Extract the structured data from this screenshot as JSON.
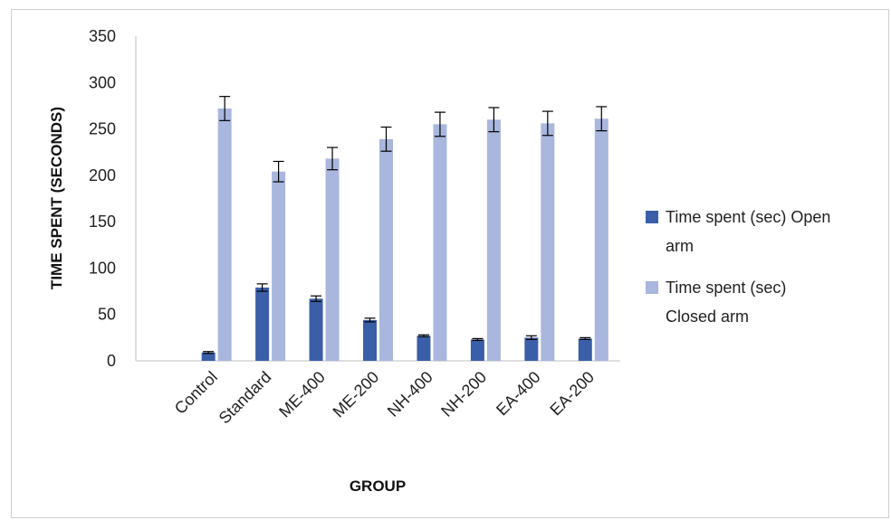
{
  "chart_data": {
    "type": "bar",
    "title": "",
    "xlabel": "GROUP",
    "ylabel": "TIME SPENT (SECONDS)",
    "ylim": [
      0,
      350
    ],
    "yticks": [
      0,
      50,
      100,
      150,
      200,
      250,
      300,
      350
    ],
    "grid": false,
    "legend_position": "right",
    "categories": [
      "",
      "Control",
      "Standard",
      "ME-400",
      "ME-200",
      "NH-400",
      "NH-200",
      "EA-400",
      "EA-200"
    ],
    "series": [
      {
        "name": "Time spent (sec) Open arm",
        "legend_lines": [
          "Time spent (sec) Open",
          "arm"
        ],
        "color": "#3a5fa8",
        "values": [
          null,
          9,
          79,
          67,
          44,
          27,
          23,
          25,
          24
        ],
        "errors": [
          null,
          1,
          4,
          3,
          2,
          1,
          1,
          2,
          1
        ]
      },
      {
        "name": "Time spent (sec) Closed arm",
        "legend_lines": [
          "Time spent (sec)",
          "Closed arm"
        ],
        "color": "#a9b6dd",
        "values": [
          null,
          272,
          204,
          218,
          239,
          255,
          260,
          256,
          261
        ],
        "errors": [
          null,
          13,
          11,
          12,
          13,
          13,
          13,
          13,
          13
        ]
      }
    ]
  }
}
